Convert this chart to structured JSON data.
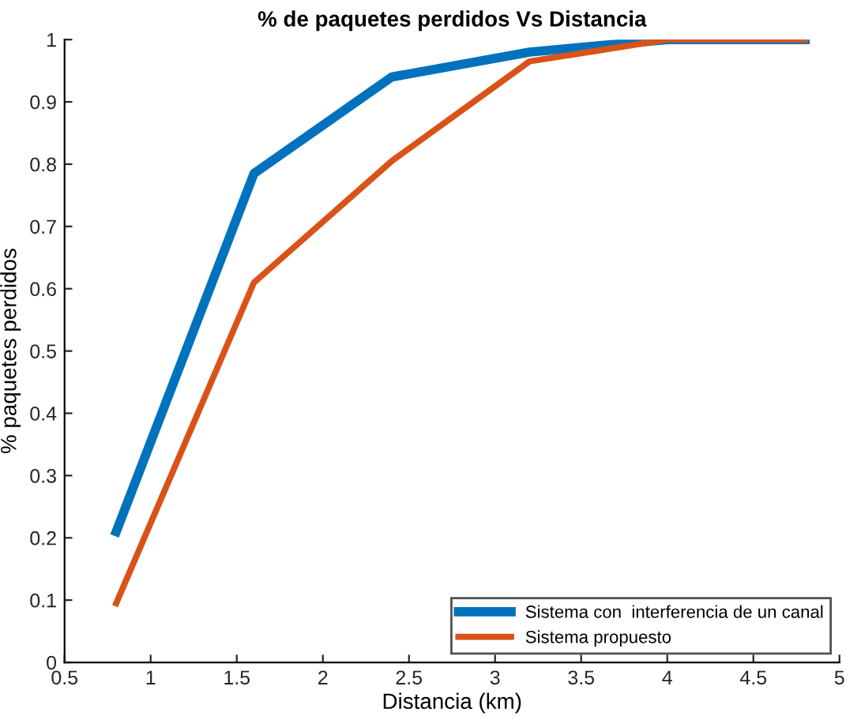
{
  "chart_data": {
    "type": "line",
    "title": "% de paquetes perdidos Vs Distancia",
    "xlabel": "Distancia (km)",
    "ylabel": "% paquetes perdidos",
    "x": [
      0.8,
      1.6,
      2.4,
      3.2,
      4.0,
      4.8
    ],
    "series": [
      {
        "name": "Sistema con  interferencia de un canal",
        "color": "#0072bd",
        "values": [
          0.21,
          0.785,
          0.94,
          0.98,
          1.0,
          1.0
        ]
      },
      {
        "name": "Sistema propuesto",
        "color": "#d95319",
        "values": [
          0.095,
          0.61,
          0.805,
          0.965,
          1.0,
          1.0
        ]
      }
    ],
    "xlim": [
      0.5,
      5
    ],
    "xticks": [
      0.5,
      1,
      1.5,
      2,
      2.5,
      3,
      3.5,
      4,
      4.5,
      5
    ],
    "ylim": [
      0,
      1
    ],
    "yticks": [
      0,
      0.1,
      0.2,
      0.3,
      0.4,
      0.5,
      0.6,
      0.7,
      0.8,
      0.9,
      1
    ],
    "legend": "lower right",
    "grid": false,
    "marker": "none",
    "line_style": "solid"
  }
}
